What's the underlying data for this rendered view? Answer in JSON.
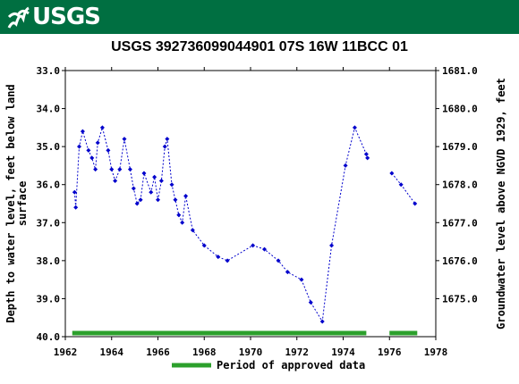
{
  "header": {
    "logo_text": "USGS",
    "bg_color": "#006f41"
  },
  "chart_data": {
    "type": "scatter",
    "title": "USGS 392736099044901 07S 16W 11BCC 01",
    "ylabel_left": "Depth to water level, feet below land surface",
    "ylabel_right": "Groundwater level above NGVD 1929, feet",
    "xlim": [
      1962,
      1978
    ],
    "ylim_left": [
      33.0,
      40.0
    ],
    "ylim_right": [
      1681.0,
      1674.0
    ],
    "x_ticks": [
      1962,
      1964,
      1966,
      1968,
      1970,
      1972,
      1974,
      1976,
      1978
    ],
    "y_ticks_left": [
      "33.0",
      "34.0",
      "35.0",
      "36.0",
      "37.0",
      "38.0",
      "39.0",
      "40.0"
    ],
    "y_ticks_right": [
      "1681.0",
      "1680.0",
      "1679.0",
      "1678.0",
      "1677.0",
      "1676.0",
      "1675.0"
    ],
    "series_color": "#0000cc",
    "segments": [
      [
        [
          1962.4,
          36.2
        ],
        [
          1962.45,
          36.6
        ],
        [
          1962.6,
          35.0
        ],
        [
          1962.75,
          34.6
        ],
        [
          1963.0,
          35.1
        ],
        [
          1963.15,
          35.3
        ],
        [
          1963.3,
          35.6
        ],
        [
          1963.4,
          34.9
        ],
        [
          1963.6,
          34.5
        ],
        [
          1963.85,
          35.1
        ],
        [
          1964.0,
          35.6
        ],
        [
          1964.15,
          35.9
        ],
        [
          1964.35,
          35.6
        ],
        [
          1964.55,
          34.8
        ],
        [
          1964.8,
          35.6
        ],
        [
          1964.95,
          36.1
        ],
        [
          1965.1,
          36.5
        ],
        [
          1965.25,
          36.4
        ],
        [
          1965.4,
          35.7
        ],
        [
          1965.7,
          36.2
        ],
        [
          1965.85,
          35.8
        ],
        [
          1966.0,
          36.4
        ],
        [
          1966.15,
          35.9
        ],
        [
          1966.3,
          35.0
        ],
        [
          1966.4,
          34.8
        ],
        [
          1966.6,
          36.0
        ],
        [
          1966.75,
          36.4
        ],
        [
          1966.9,
          36.8
        ],
        [
          1967.05,
          37.0
        ],
        [
          1967.2,
          36.3
        ],
        [
          1967.5,
          37.2
        ],
        [
          1968.0,
          37.6
        ],
        [
          1968.6,
          37.9
        ],
        [
          1969.0,
          38.0
        ],
        [
          1970.1,
          37.6
        ],
        [
          1970.6,
          37.7
        ],
        [
          1971.2,
          38.0
        ],
        [
          1971.6,
          38.3
        ],
        [
          1972.2,
          38.5
        ],
        [
          1972.6,
          39.1
        ],
        [
          1973.1,
          39.6
        ],
        [
          1973.5,
          37.6
        ],
        [
          1974.1,
          35.5
        ],
        [
          1974.5,
          34.5
        ],
        [
          1975.0,
          35.2
        ],
        [
          1975.05,
          35.3
        ]
      ],
      [
        [
          1976.1,
          35.7
        ],
        [
          1976.5,
          36.0
        ],
        [
          1977.1,
          36.5
        ]
      ]
    ],
    "approved_periods": [
      [
        1962.3,
        1975.0
      ],
      [
        1976.0,
        1977.2
      ]
    ],
    "approved_color": "#2ca02c",
    "legend_label": "Period of approved data"
  }
}
